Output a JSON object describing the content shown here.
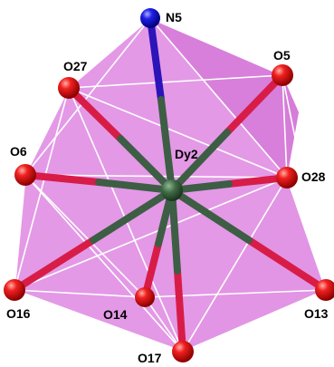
{
  "center": {
    "id": "dy2",
    "label": "Dy2"
  },
  "ligands": [
    {
      "id": "n5",
      "label": "N5"
    },
    {
      "id": "o27",
      "label": "O27"
    },
    {
      "id": "o5",
      "label": "O5"
    },
    {
      "id": "o6",
      "label": "O6"
    },
    {
      "id": "o28",
      "label": "O28"
    },
    {
      "id": "o16",
      "label": "O16"
    },
    {
      "id": "o14",
      "label": "O14"
    },
    {
      "id": "o13",
      "label": "O13"
    },
    {
      "id": "o17",
      "label": "O17"
    }
  ],
  "colors": {
    "polyhedron_fill": "#d977dd",
    "polyhedron_edge": "#ffffff",
    "dy_atom": "#3f6b45",
    "o_atom": "#e01010",
    "n_atom": "#1a1ae0",
    "o_bond": "#d81c48",
    "n_bond": "#2b14b8",
    "dy_bond": "#3d5e44"
  }
}
